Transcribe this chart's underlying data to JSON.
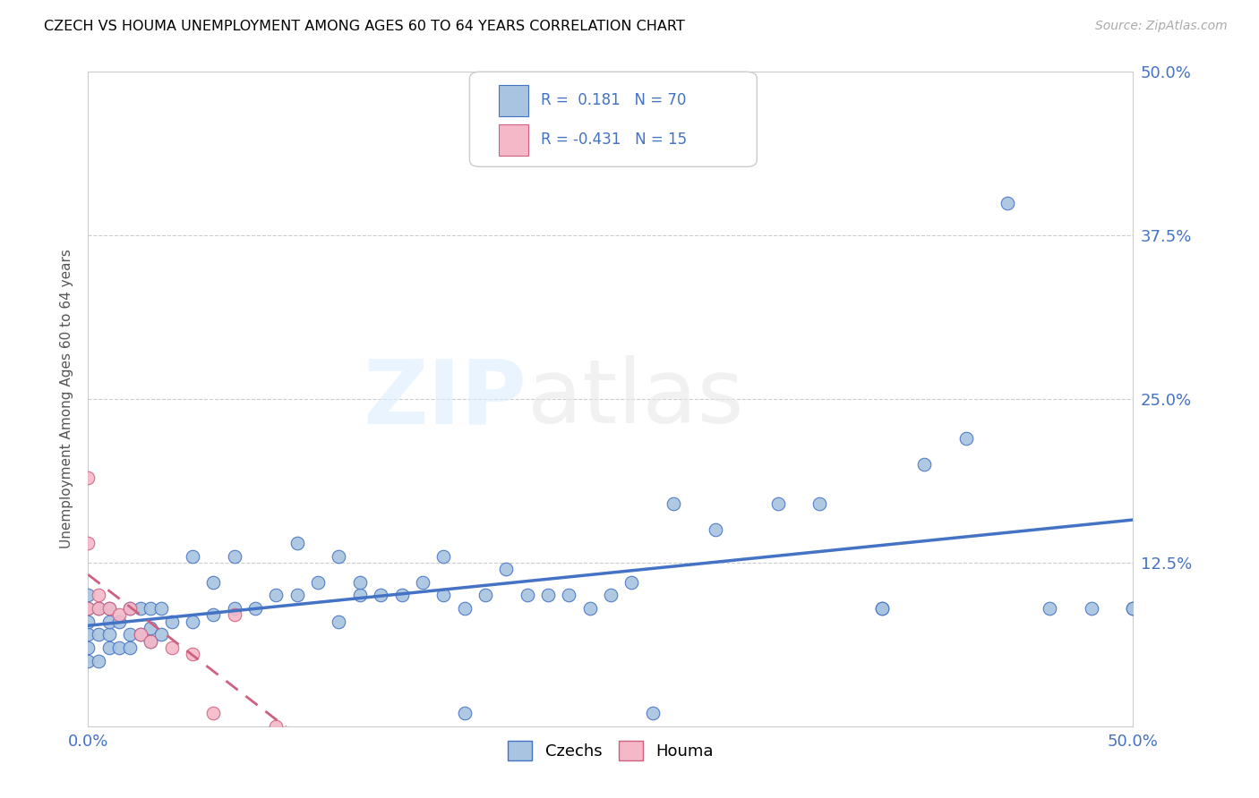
{
  "title": "CZECH VS HOUMA UNEMPLOYMENT AMONG AGES 60 TO 64 YEARS CORRELATION CHART",
  "source": "Source: ZipAtlas.com",
  "ylabel": "Unemployment Among Ages 60 to 64 years",
  "xlim": [
    0.0,
    0.5
  ],
  "ylim": [
    0.0,
    0.5
  ],
  "czech_R": 0.181,
  "czech_N": 70,
  "houma_R": -0.431,
  "houma_N": 15,
  "czech_color": "#a8c4e0",
  "houma_color": "#f4b8c8",
  "czech_line_color": "#4472c4",
  "houma_line_color": "#d06080",
  "czech_x": [
    0.0,
    0.0,
    0.0,
    0.0,
    0.0,
    0.0,
    0.005,
    0.005,
    0.005,
    0.01,
    0.01,
    0.01,
    0.01,
    0.015,
    0.015,
    0.02,
    0.02,
    0.02,
    0.025,
    0.025,
    0.03,
    0.03,
    0.03,
    0.035,
    0.035,
    0.04,
    0.05,
    0.05,
    0.06,
    0.06,
    0.07,
    0.07,
    0.08,
    0.09,
    0.1,
    0.1,
    0.11,
    0.12,
    0.12,
    0.13,
    0.13,
    0.14,
    0.15,
    0.16,
    0.17,
    0.17,
    0.18,
    0.18,
    0.19,
    0.2,
    0.21,
    0.22,
    0.23,
    0.24,
    0.25,
    0.26,
    0.27,
    0.28,
    0.3,
    0.33,
    0.35,
    0.38,
    0.38,
    0.4,
    0.42,
    0.44,
    0.46,
    0.48,
    0.5,
    0.5
  ],
  "czech_y": [
    0.05,
    0.06,
    0.07,
    0.08,
    0.09,
    0.1,
    0.05,
    0.07,
    0.09,
    0.06,
    0.07,
    0.08,
    0.09,
    0.06,
    0.08,
    0.06,
    0.07,
    0.09,
    0.07,
    0.09,
    0.065,
    0.075,
    0.09,
    0.07,
    0.09,
    0.08,
    0.08,
    0.13,
    0.085,
    0.11,
    0.09,
    0.13,
    0.09,
    0.1,
    0.1,
    0.14,
    0.11,
    0.08,
    0.13,
    0.1,
    0.11,
    0.1,
    0.1,
    0.11,
    0.1,
    0.13,
    0.01,
    0.09,
    0.1,
    0.12,
    0.1,
    0.1,
    0.1,
    0.09,
    0.1,
    0.11,
    0.01,
    0.17,
    0.15,
    0.17,
    0.17,
    0.09,
    0.09,
    0.2,
    0.22,
    0.4,
    0.09,
    0.09,
    0.09,
    0.09
  ],
  "houma_x": [
    0.0,
    0.0,
    0.0,
    0.005,
    0.005,
    0.01,
    0.015,
    0.02,
    0.025,
    0.03,
    0.04,
    0.05,
    0.06,
    0.07,
    0.09
  ],
  "houma_y": [
    0.19,
    0.14,
    0.09,
    0.1,
    0.09,
    0.09,
    0.085,
    0.09,
    0.07,
    0.065,
    0.06,
    0.055,
    0.01,
    0.085,
    0.0
  ]
}
